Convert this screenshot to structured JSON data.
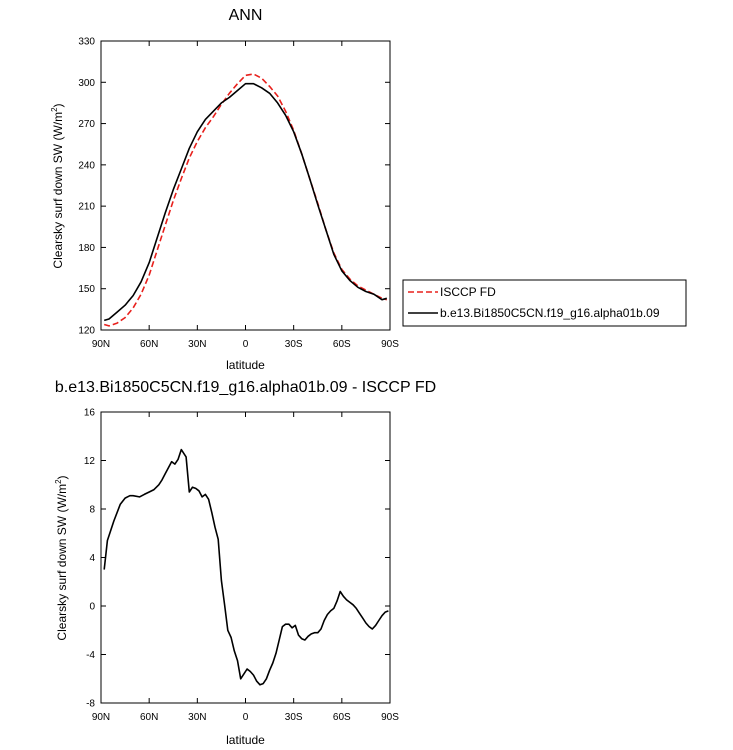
{
  "chart_data": [
    {
      "type": "line",
      "title": "ANN",
      "xlabel": "latitude",
      "ylabel_main": "Clearsky surf down SW (W/m",
      "ylabel_sup": "2",
      "ylabel_close": ")",
      "xlim": [
        90,
        -90
      ],
      "ylim": [
        120,
        330
      ],
      "x_ticks": [
        {
          "value": 90,
          "label": "90N"
        },
        {
          "value": 60,
          "label": "60N"
        },
        {
          "value": 30,
          "label": "30N"
        },
        {
          "value": 0,
          "label": "0"
        },
        {
          "value": -30,
          "label": "30S"
        },
        {
          "value": -60,
          "label": "60S"
        },
        {
          "value": -90,
          "label": "90S"
        }
      ],
      "y_ticks": [
        120,
        150,
        180,
        210,
        240,
        270,
        300,
        330
      ],
      "legend_position": "right",
      "series": [
        {
          "name": "ISCCP FD",
          "color": "#e8201c",
          "dash": "dashed",
          "x": [
            88,
            85,
            80,
            75,
            70,
            65,
            60,
            55,
            50,
            45,
            40,
            35,
            30,
            25,
            20,
            15,
            10,
            5,
            0,
            -5,
            -10,
            -15,
            -20,
            -25,
            -30,
            -35,
            -40,
            -45,
            -50,
            -55,
            -60,
            -65,
            -70,
            -75,
            -80,
            -85,
            -88
          ],
          "y": [
            124,
            123,
            125,
            129,
            136,
            146,
            160,
            178,
            196,
            214,
            230,
            245,
            257,
            267,
            275,
            284,
            292,
            299,
            305,
            306,
            303,
            297,
            290,
            279,
            265,
            248,
            230,
            212,
            193,
            176,
            164,
            157,
            152,
            149,
            146,
            143,
            142
          ]
        },
        {
          "name": "b.e13.Bi1850C5CN.f19_g16.alpha01b.09",
          "color": "#000000",
          "dash": "solid",
          "x": [
            88,
            85,
            80,
            75,
            70,
            65,
            60,
            55,
            50,
            45,
            40,
            35,
            30,
            25,
            20,
            15,
            10,
            5,
            0,
            -5,
            -10,
            -15,
            -20,
            -25,
            -30,
            -35,
            -40,
            -45,
            -50,
            -55,
            -60,
            -65,
            -70,
            -75,
            -80,
            -85,
            -88
          ],
          "y": [
            127,
            128,
            133,
            138,
            145,
            155,
            169,
            187,
            205,
            222,
            237,
            252,
            264,
            273,
            279,
            285,
            289,
            294,
            299,
            299,
            296,
            292,
            285,
            276,
            264,
            248,
            230,
            211,
            193,
            175,
            163,
            156,
            151,
            148,
            146,
            142,
            143
          ]
        }
      ]
    },
    {
      "type": "line",
      "title": "b.e13.Bi1850C5CN.f19_g16.alpha01b.09 - ISCCP FD",
      "xlabel": "latitude",
      "ylabel_main": "Clearsky surf down SW (W/m",
      "ylabel_sup": "2",
      "ylabel_close": ")",
      "xlim": [
        90,
        -90
      ],
      "ylim": [
        -8,
        16
      ],
      "x_ticks": [
        {
          "value": 90,
          "label": "90N"
        },
        {
          "value": 60,
          "label": "60N"
        },
        {
          "value": 30,
          "label": "30N"
        },
        {
          "value": 0,
          "label": "0"
        },
        {
          "value": -30,
          "label": "30S"
        },
        {
          "value": -60,
          "label": "60S"
        },
        {
          "value": -90,
          "label": "90S"
        }
      ],
      "y_ticks": [
        -8,
        -4,
        0,
        4,
        8,
        12,
        16
      ],
      "series": [
        {
          "name": "",
          "color": "#000000",
          "dash": "solid",
          "x": [
            88,
            86,
            82,
            78,
            75,
            72,
            70,
            66,
            63,
            60,
            57,
            54,
            52,
            50,
            48,
            46,
            44,
            42,
            40,
            37,
            35,
            33,
            31,
            29,
            27,
            25,
            23,
            21,
            19,
            17,
            15,
            13,
            11,
            9,
            7,
            5,
            3,
            1,
            -1,
            -3,
            -5,
            -7,
            -9,
            -11,
            -13,
            -15,
            -17,
            -19,
            -21,
            -23,
            -25,
            -27,
            -29,
            -31,
            -33,
            -35,
            -37,
            -39,
            -41,
            -43,
            -45,
            -47,
            -49,
            -51,
            -53,
            -55,
            -57,
            -59,
            -61,
            -63,
            -65,
            -67,
            -69,
            -71,
            -73,
            -75,
            -77,
            -79,
            -81,
            -83,
            -85,
            -87,
            -89
          ],
          "y": [
            3,
            5.4,
            7,
            8.4,
            8.9,
            9.1,
            9.1,
            9.0,
            9.2,
            9.4,
            9.6,
            10.0,
            10.4,
            10.9,
            11.4,
            11.9,
            11.7,
            12.1,
            12.9,
            12.3,
            9.4,
            9.8,
            9.7,
            9.5,
            9.0,
            9.2,
            8.8,
            7.7,
            6.5,
            5.5,
            2.1,
            0.1,
            -2.0,
            -2.6,
            -3.7,
            -4.5,
            -6.0,
            -5.6,
            -5.2,
            -5.4,
            -5.7,
            -6.2,
            -6.5,
            -6.4,
            -6.0,
            -5.3,
            -4.7,
            -3.9,
            -2.8,
            -1.7,
            -1.5,
            -1.5,
            -1.8,
            -1.6,
            -2.4,
            -2.7,
            -2.8,
            -2.5,
            -2.3,
            -2.2,
            -2.2,
            -1.9,
            -1.2,
            -0.7,
            -0.4,
            -0.2,
            0.4,
            1.2,
            0.8,
            0.5,
            0.3,
            0.1,
            -0.2,
            -0.6,
            -1.0,
            -1.4,
            -1.7,
            -1.9,
            -1.6,
            -1.2,
            -0.8,
            -0.5,
            -0.4
          ]
        }
      ]
    }
  ]
}
